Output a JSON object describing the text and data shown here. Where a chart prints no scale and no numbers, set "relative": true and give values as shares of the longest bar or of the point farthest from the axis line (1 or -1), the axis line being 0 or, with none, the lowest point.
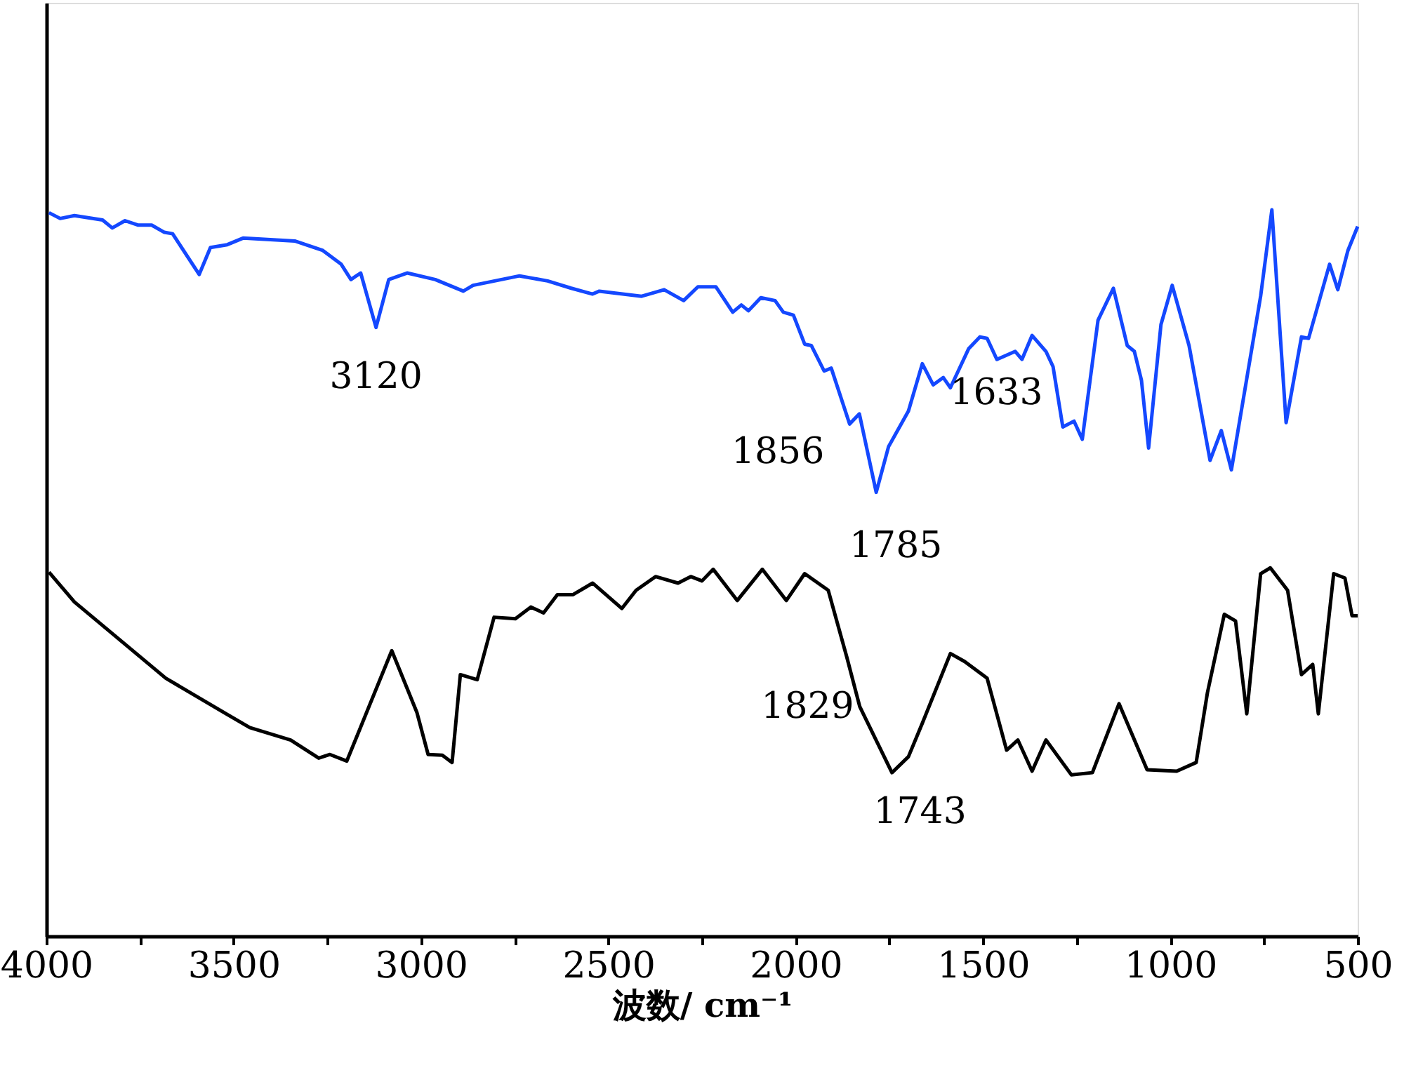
{
  "chart_data": {
    "type": "line",
    "relative": true,
    "xlabel": "波数/ cm⁻¹",
    "xlim": [
      4000,
      500
    ],
    "xticks": [
      4000,
      {
        "value": 3750,
        "label": null
      },
      3500,
      {
        "value": 3250,
        "label": null
      },
      3000,
      {
        "value": 2750,
        "label": null
      },
      2500,
      {
        "value": 2250,
        "label": null
      },
      2000,
      {
        "value": 1750,
        "label": null
      },
      1500,
      {
        "value": 1250,
        "label": null
      },
      1000,
      {
        "value": 750,
        "label": null
      },
      500
    ],
    "grid": false,
    "marker": "none",
    "line_style": "solid",
    "series": [
      {
        "color": "#1448ff",
        "x": [
          3993,
          3963,
          3925,
          3850,
          3824,
          3790,
          3756,
          3719,
          3685,
          3663,
          3592,
          3562,
          3517,
          3475,
          3337,
          3262,
          3213,
          3187,
          3161,
          3120,
          3086,
          3037,
          2962,
          2887,
          2861,
          2737,
          2662,
          2599,
          2542,
          2524,
          2411,
          2351,
          2299,
          2261,
          2213,
          2168,
          2145,
          2126,
          2093,
          2055,
          2033,
          2006,
          1976,
          1958,
          1924,
          1905,
          1856,
          1830,
          1785,
          1752,
          1699,
          1662,
          1633,
          1606,
          1587,
          1538,
          1508,
          1489,
          1463,
          1414,
          1396,
          1369,
          1332,
          1313,
          1287,
          1257,
          1235,
          1193,
          1152,
          1115,
          1096,
          1077,
          1058,
          1025,
          995,
          950,
          894,
          864,
          837,
          759,
          729,
          691,
          650,
          631,
          575,
          553,
          526,
          500
        ],
        "values": [
          0.996,
          0.988,
          0.992,
          0.986,
          0.975,
          0.985,
          0.979,
          0.979,
          0.969,
          0.967,
          0.911,
          0.948,
          0.952,
          0.961,
          0.957,
          0.944,
          0.925,
          0.904,
          0.913,
          0.838,
          0.904,
          0.913,
          0.904,
          0.888,
          0.896,
          0.909,
          0.902,
          0.892,
          0.884,
          0.888,
          0.881,
          0.89,
          0.875,
          0.894,
          0.894,
          0.859,
          0.869,
          0.861,
          0.879,
          0.875,
          0.859,
          0.855,
          0.815,
          0.813,
          0.778,
          0.782,
          0.705,
          0.719,
          0.611,
          0.674,
          0.723,
          0.788,
          0.759,
          0.769,
          0.755,
          0.809,
          0.825,
          0.823,
          0.794,
          0.805,
          0.794,
          0.827,
          0.805,
          0.784,
          0.701,
          0.709,
          0.684,
          0.848,
          0.892,
          0.813,
          0.805,
          0.765,
          0.672,
          0.842,
          0.896,
          0.813,
          0.655,
          0.696,
          0.642,
          0.881,
          1.0,
          0.707,
          0.825,
          0.823,
          0.925,
          0.89,
          0.944,
          0.977
        ]
      },
      {
        "color": "#000000",
        "x": [
          3993,
          3925,
          3681,
          3573,
          3457,
          3348,
          3273,
          3243,
          3198,
          3078,
          3011,
          2981,
          2943,
          2917,
          2895,
          2850,
          2805,
          2748,
          2707,
          2673,
          2636,
          2595,
          2542,
          2464,
          2426,
          2374,
          2314,
          2280,
          2250,
          2220,
          2156,
          2089,
          2025,
          1976,
          1913,
          1864,
          1829,
          1743,
          1699,
          1662,
          1587,
          1549,
          1489,
          1437,
          1407,
          1369,
          1332,
          1264,
          1208,
          1137,
          1062,
          983,
          931,
          901,
          856,
          826,
          796,
          759,
          733,
          687,
          650,
          620,
          605,
          564,
          534,
          515,
          500
        ],
        "values": [
          0.501,
          0.46,
          0.355,
          0.322,
          0.287,
          0.27,
          0.245,
          0.25,
          0.241,
          0.393,
          0.308,
          0.25,
          0.249,
          0.239,
          0.36,
          0.353,
          0.439,
          0.437,
          0.453,
          0.445,
          0.47,
          0.47,
          0.486,
          0.451,
          0.476,
          0.495,
          0.486,
          0.495,
          0.489,
          0.505,
          0.462,
          0.505,
          0.462,
          0.499,
          0.476,
          0.385,
          0.316,
          0.225,
          0.247,
          0.293,
          0.389,
          0.378,
          0.355,
          0.256,
          0.27,
          0.227,
          0.27,
          0.222,
          0.225,
          0.32,
          0.229,
          0.227,
          0.239,
          0.335,
          0.443,
          0.434,
          0.306,
          0.499,
          0.507,
          0.476,
          0.36,
          0.374,
          0.306,
          0.499,
          0.493,
          0.441,
          0.441
        ]
      }
    ],
    "annotations": [
      {
        "text": "3120",
        "x": 3120,
        "y": 0.838
      },
      {
        "text": "1856",
        "x": 1856,
        "y": 0.705
      },
      {
        "text": "1785",
        "x": 1785,
        "y": 0.611
      },
      {
        "text": "1633",
        "x": 1633,
        "y": 0.759
      },
      {
        "text": "1829",
        "x": 1829,
        "y": 0.316
      },
      {
        "text": "1743",
        "x": 1743,
        "y": 0.225
      }
    ]
  }
}
